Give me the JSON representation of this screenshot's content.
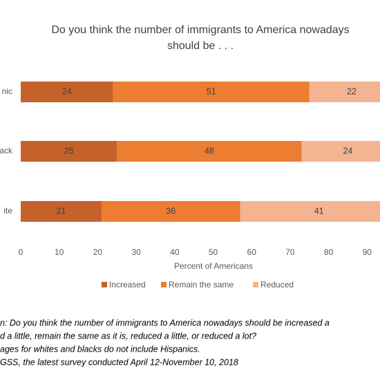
{
  "chart_data": {
    "type": "stacked-barh",
    "title": [
      "Do you think the number of immigrants to America nowadays",
      "should be . . ."
    ],
    "categories": [
      "nic",
      "ack",
      "ite"
    ],
    "series": [
      {
        "name": "Increased",
        "color": "#c5622b",
        "values": [
          24,
          25,
          21
        ]
      },
      {
        "name": "Remain the same",
        "color": "#ed7d31",
        "values": [
          51,
          48,
          36
        ]
      },
      {
        "name": "Reduced",
        "color": "#f4b490",
        "values": [
          22,
          24,
          41
        ]
      }
    ],
    "xlim": [
      0,
      100
    ],
    "xticks": [
      0,
      10,
      20,
      30,
      40,
      50,
      60,
      70,
      80,
      90
    ],
    "xlabel": "Percent of Americans",
    "grid": false,
    "legend": "bottom",
    "notes": [
      "n: Do you think the number of immigrants to America nowadays should be increased a",
      "d a little, remain the same as it is, reduced a little, or reduced a lot?",
      "ages for whites and blacks do not include Hispanics.",
      "GSS, the latest survey conducted April 12-November 10, 2018"
    ]
  }
}
